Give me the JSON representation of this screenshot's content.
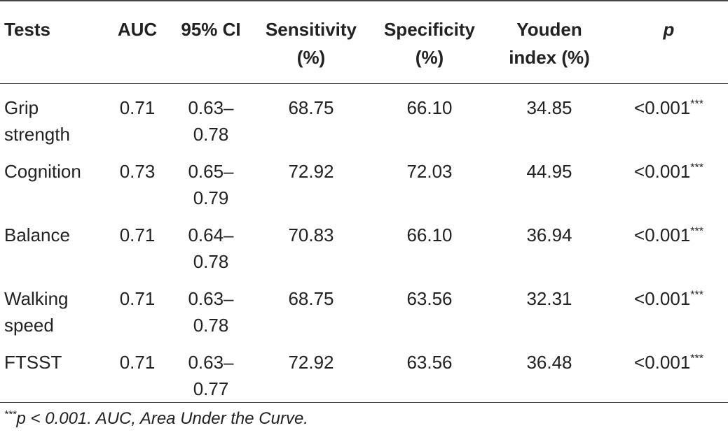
{
  "table": {
    "headers": [
      "Tests",
      "AUC",
      "95% CI",
      "Sensitivity (%)",
      "Specificity (%)",
      "Youden index (%)",
      "p"
    ],
    "header_lines": [
      [
        "Tests"
      ],
      [
        "AUC"
      ],
      [
        "95% CI"
      ],
      [
        "Sensitivity",
        "(%)"
      ],
      [
        "Specificity",
        "(%)"
      ],
      [
        "Youden",
        "index (%)"
      ],
      [
        "p"
      ]
    ],
    "rows": [
      {
        "test": [
          "Grip",
          "strength"
        ],
        "auc": "0.71",
        "ci": [
          "0.63–",
          "0.78"
        ],
        "sensitivity": "68.75",
        "specificity": "66.10",
        "youden": "34.85",
        "p": "<0.001",
        "p_mark": "***"
      },
      {
        "test": [
          "Cognition"
        ],
        "auc": "0.73",
        "ci": [
          "0.65–",
          "0.79"
        ],
        "sensitivity": "72.92",
        "specificity": "72.03",
        "youden": "44.95",
        "p": "<0.001",
        "p_mark": "***"
      },
      {
        "test": [
          "Balance"
        ],
        "auc": "0.71",
        "ci": [
          "0.64–",
          "0.78"
        ],
        "sensitivity": "70.83",
        "specificity": "66.10",
        "youden": "36.94",
        "p": "<0.001",
        "p_mark": "***"
      },
      {
        "test": [
          "Walking",
          "speed"
        ],
        "auc": "0.71",
        "ci": [
          "0.63–",
          "0.78"
        ],
        "sensitivity": "68.75",
        "specificity": "63.56",
        "youden": "32.31",
        "p": "<0.001",
        "p_mark": "***"
      },
      {
        "test": [
          "FTSST"
        ],
        "auc": "0.71",
        "ci": [
          "0.63–",
          "0.77"
        ],
        "sensitivity": "72.92",
        "specificity": "63.56",
        "youden": "36.48",
        "p": "<0.001",
        "p_mark": "***"
      }
    ]
  },
  "footnote": {
    "mark": "***",
    "text": "p < 0.001. AUC, Area Under the Curve."
  }
}
